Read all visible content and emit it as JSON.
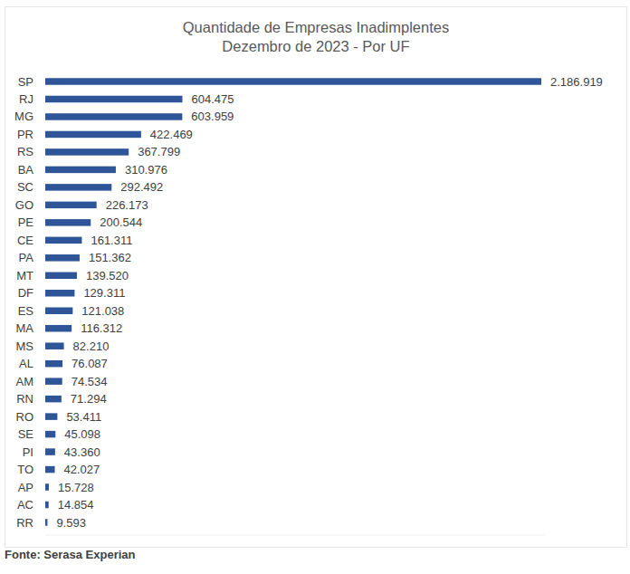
{
  "chart_data": {
    "type": "bar",
    "orientation": "horizontal",
    "title": "Quantidade de Empresas Inadimplentes",
    "subtitle": "Dezembro de 2023 - Por UF",
    "annotations": [
      "Fonte: Serasa Experian"
    ],
    "categories": [
      "SP",
      "RJ",
      "MG",
      "PR",
      "RS",
      "BA",
      "SC",
      "GO",
      "PE",
      "CE",
      "PA",
      "MT",
      "DF",
      "ES",
      "MA",
      "MS",
      "AL",
      "AM",
      "RN",
      "RO",
      "SE",
      "PI",
      "TO",
      "AP",
      "AC",
      "RR"
    ],
    "values": [
      2186919,
      604475,
      603959,
      422469,
      367799,
      310976,
      292492,
      226173,
      200544,
      161311,
      151362,
      139520,
      129311,
      121038,
      116312,
      82210,
      76087,
      74534,
      71294,
      53411,
      45098,
      43360,
      42027,
      15728,
      14854,
      9593
    ],
    "value_labels": [
      "2.186.919",
      "604.475",
      "603.959",
      "422.469",
      "367.799",
      "310.976",
      "292.492",
      "226.173",
      "200.544",
      "161.311",
      "151.362",
      "139.520",
      "129.311",
      "121.038",
      "116.312",
      "82.210",
      "76.087",
      "74.534",
      "71.294",
      "53.411",
      "45.098",
      "43.360",
      "42.027",
      "15.728",
      "14.854",
      "9.593"
    ],
    "color": "#2e5597",
    "xlim": [
      0,
      2200000
    ],
    "xticks": [],
    "grid": false,
    "data_labels": true,
    "tick_labels": "y"
  }
}
